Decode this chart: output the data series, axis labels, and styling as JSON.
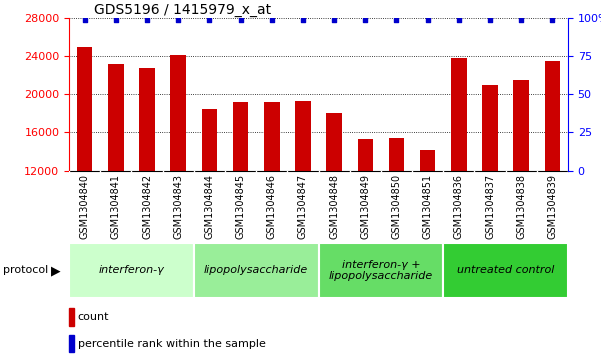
{
  "title": "GDS5196 / 1415979_x_at",
  "samples": [
    "GSM1304840",
    "GSM1304841",
    "GSM1304842",
    "GSM1304843",
    "GSM1304844",
    "GSM1304845",
    "GSM1304846",
    "GSM1304847",
    "GSM1304848",
    "GSM1304849",
    "GSM1304850",
    "GSM1304851",
    "GSM1304836",
    "GSM1304837",
    "GSM1304838",
    "GSM1304839"
  ],
  "counts": [
    25000,
    23200,
    22800,
    24100,
    18500,
    19200,
    19200,
    19300,
    18000,
    15300,
    15400,
    14200,
    23800,
    21000,
    21500,
    23500
  ],
  "ylim_left": [
    12000,
    28000
  ],
  "ylim_right": [
    0,
    100
  ],
  "yticks_left": [
    12000,
    16000,
    20000,
    24000,
    28000
  ],
  "yticks_right": [
    0,
    25,
    50,
    75,
    100
  ],
  "bar_color": "#cc0000",
  "dot_color": "#0000cc",
  "groups": [
    {
      "label": "interferon-γ",
      "start": 0,
      "end": 4,
      "color": "#ccffcc"
    },
    {
      "label": "lipopolysaccharide",
      "start": 4,
      "end": 8,
      "color": "#99ee99"
    },
    {
      "label": "interferon-γ +\nlipopolysaccharide",
      "start": 8,
      "end": 12,
      "color": "#66dd66"
    },
    {
      "label": "untreated control",
      "start": 12,
      "end": 16,
      "color": "#33cc33"
    }
  ],
  "protocol_label": "protocol",
  "legend_count_label": "count",
  "legend_percentile_label": "percentile rank within the sample",
  "bar_width": 0.5,
  "dot_size": 12,
  "gray_bg": "#d8d8d8",
  "ticklabel_fontsize": 7,
  "group_fontsize": 8,
  "title_fontsize": 10
}
